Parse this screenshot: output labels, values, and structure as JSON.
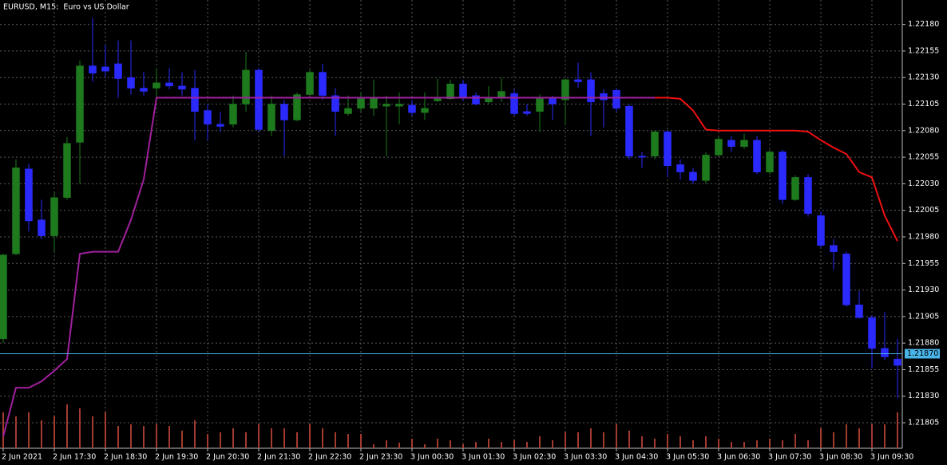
{
  "chart_data": {
    "type": "candlestick",
    "title": "EURUSD, M15:  Euro vs US Dollar",
    "categories": [
      "2 Jun 2021",
      null,
      null,
      null,
      "2 Jun 17:30",
      null,
      null,
      null,
      "2 Jun 18:30",
      null,
      null,
      null,
      "2 Jun 19:30",
      null,
      null,
      null,
      "2 Jun 20:30",
      null,
      null,
      null,
      "2 Jun 21:30",
      null,
      null,
      null,
      "2 Jun 22:30",
      null,
      null,
      null,
      "2 Jun 23:30",
      null,
      null,
      null,
      "3 Jun 00:30",
      null,
      null,
      null,
      "3 Jun 01:30",
      null,
      null,
      null,
      "3 Jun 02:30",
      null,
      null,
      null,
      "3 Jun 03:30",
      null,
      null,
      null,
      "3 Jun 04:30",
      null,
      null,
      null,
      "3 Jun 05:30",
      null,
      null,
      null,
      "3 Jun 06:30",
      null,
      null,
      null,
      "3 Jun 07:30",
      null,
      null,
      null,
      "3 Jun 08:30",
      null,
      null,
      null,
      "3 Jun 09:30",
      null,
      null
    ],
    "candles": {
      "open": [
        1.21884,
        1.21964,
        1.22044,
        1.21996,
        1.21981,
        1.22017,
        1.22069,
        1.22141,
        1.2214,
        1.22143,
        1.2213,
        1.2212,
        1.2212,
        1.22125,
        1.22122,
        1.2212,
        1.22099,
        1.22086,
        1.22086,
        1.22105,
        1.22137,
        1.2208,
        1.22105,
        1.2209,
        1.22114,
        1.22135,
        1.22113,
        1.22096,
        1.22101,
        1.22101,
        1.22103,
        1.22103,
        1.22104,
        1.22097,
        1.22108,
        1.2211,
        1.22124,
        1.22113,
        1.22107,
        1.22111,
        1.22115,
        1.22098,
        1.22098,
        1.2211,
        1.22109,
        1.22128,
        1.22128,
        1.22115,
        1.22118,
        1.22103,
        1.22056,
        1.22056,
        1.22079,
        1.22048,
        1.22041,
        1.22033,
        1.22057,
        1.22071,
        1.22065,
        1.22071,
        1.22041,
        1.2206,
        1.22015,
        1.22036,
        1.22,
        1.21972,
        1.21964,
        1.21916,
        1.21904,
        1.21875,
        1.21865
      ],
      "high": [
        1.21964,
        1.22053,
        1.22049,
        1.22015,
        1.22023,
        1.22074,
        1.22146,
        1.22186,
        1.22161,
        1.22165,
        1.22165,
        1.22135,
        1.22139,
        1.22139,
        1.22135,
        1.22137,
        1.22105,
        1.22098,
        1.22113,
        1.22154,
        1.22139,
        1.22113,
        1.22109,
        1.22116,
        1.22137,
        1.22143,
        1.2212,
        1.22113,
        1.22116,
        1.22128,
        1.22113,
        1.22116,
        1.22109,
        1.22116,
        1.22129,
        1.22128,
        1.22128,
        1.22116,
        1.22122,
        1.2213,
        1.22119,
        1.22105,
        1.22114,
        1.22113,
        1.22129,
        1.22144,
        1.22135,
        1.22119,
        1.2212,
        1.22105,
        1.2206,
        1.2208,
        1.2208,
        1.22053,
        1.22045,
        1.2206,
        1.22075,
        1.22075,
        1.22077,
        1.22075,
        1.22062,
        1.22062,
        1.22038,
        1.22039,
        1.22004,
        1.21978,
        1.21966,
        1.21929,
        1.21906,
        1.21909,
        1.21884
      ],
      "low": [
        1.2188,
        1.21963,
        1.21985,
        1.21978,
        1.21966,
        1.22015,
        1.2203,
        1.22126,
        1.22131,
        1.22111,
        1.22114,
        1.22113,
        1.22111,
        1.22119,
        1.22113,
        1.22071,
        1.22071,
        1.22079,
        1.22083,
        1.22098,
        1.22079,
        1.22075,
        1.22056,
        1.22089,
        1.22113,
        1.22109,
        1.22075,
        1.22094,
        1.22098,
        1.22094,
        1.22056,
        1.22086,
        1.22094,
        1.2209,
        1.22107,
        1.22109,
        1.22108,
        1.22104,
        1.22105,
        1.22107,
        1.22094,
        1.22094,
        1.22079,
        1.2209,
        1.22086,
        1.2212,
        1.22075,
        1.22083,
        1.22098,
        1.22053,
        1.22045,
        1.22053,
        1.22036,
        1.22034,
        1.2203,
        1.2203,
        1.22056,
        1.2206,
        1.22063,
        1.22039,
        1.22039,
        1.22011,
        1.22014,
        1.21999,
        1.2197,
        1.21949,
        1.21914,
        1.21903,
        1.21856,
        1.21864,
        1.21828
      ],
      "close": [
        1.21963,
        1.22045,
        1.21995,
        1.21981,
        1.22017,
        1.22068,
        1.22141,
        1.22134,
        1.22136,
        1.22129,
        1.2212,
        1.22117,
        1.22125,
        1.22122,
        1.22119,
        1.22098,
        1.22086,
        1.22084,
        1.22105,
        1.22137,
        1.22081,
        1.22105,
        1.2209,
        1.22114,
        1.22135,
        1.22113,
        1.22098,
        1.22101,
        1.2211,
        1.22111,
        1.22105,
        1.22105,
        1.22097,
        1.22101,
        1.2211,
        1.22124,
        1.22111,
        1.22105,
        1.22111,
        1.22117,
        1.22096,
        1.22096,
        1.2211,
        1.22105,
        1.22128,
        1.22126,
        1.22107,
        1.22109,
        1.22101,
        1.22056,
        1.22055,
        1.22079,
        1.22047,
        1.22041,
        1.22033,
        1.22057,
        1.22072,
        1.22065,
        1.22071,
        1.22041,
        1.2206,
        1.22015,
        1.22036,
        1.22002,
        1.21972,
        1.21966,
        1.21916,
        1.21904,
        1.21875,
        1.21867,
        1.21859
      ]
    },
    "bull_color": "#1d7a1d",
    "bear_color": "#2a2aff",
    "indicator_lines": [
      {
        "color": "#a0209c",
        "values": [
          1.21792,
          1.21838,
          1.21838,
          1.21844,
          1.21854,
          1.21865,
          1.21964,
          1.21966,
          1.21966,
          1.21966,
          1.21996,
          1.22034,
          1.22111,
          1.22111,
          1.22111,
          1.22111,
          1.22111,
          1.22111,
          1.22111,
          1.22111,
          1.22111,
          1.22111,
          1.22111,
          1.22111,
          1.22111,
          1.22111,
          1.22111,
          1.22111,
          1.22111,
          1.22111,
          1.22111,
          1.22111,
          1.22111,
          1.22111,
          1.22111,
          1.22111,
          1.22111,
          1.22111,
          1.22111,
          1.22111,
          1.22111,
          1.22111,
          1.22111,
          1.22111,
          1.22111,
          1.22111,
          1.22111,
          1.22111,
          1.22111,
          1.22111,
          1.22111,
          1.22111,
          null,
          null,
          null,
          null,
          null,
          null,
          null,
          null,
          null,
          null,
          null,
          null,
          null,
          null,
          null,
          null,
          null,
          null,
          null
        ]
      },
      {
        "color": "#ee1111",
        "values": [
          null,
          null,
          null,
          null,
          null,
          null,
          null,
          null,
          null,
          null,
          null,
          null,
          null,
          null,
          null,
          null,
          null,
          null,
          null,
          null,
          null,
          null,
          null,
          null,
          null,
          null,
          null,
          null,
          null,
          null,
          null,
          null,
          null,
          null,
          null,
          null,
          null,
          null,
          null,
          null,
          null,
          null,
          null,
          null,
          null,
          null,
          null,
          null,
          null,
          null,
          null,
          1.22111,
          1.22111,
          1.2211,
          1.22099,
          1.22081,
          1.2208,
          1.2208,
          1.2208,
          1.2208,
          1.2208,
          1.2208,
          1.2208,
          1.22079,
          1.22071,
          1.22064,
          1.22058,
          1.22041,
          1.22036,
          1.22,
          1.21976
        ]
      }
    ],
    "volumes": [
      450,
      400,
      450,
      350,
      400,
      550,
      500,
      400,
      450,
      280,
      300,
      280,
      300,
      280,
      220,
      350,
      180,
      200,
      250,
      200,
      300,
      250,
      250,
      200,
      300,
      250,
      200,
      180,
      180,
      50,
      100,
      70,
      120,
      50,
      120,
      100,
      50,
      80,
      120,
      80,
      100,
      80,
      150,
      100,
      200,
      200,
      250,
      200,
      300,
      220,
      150,
      120,
      180,
      150,
      100,
      150,
      120,
      80,
      80,
      100,
      120,
      100,
      180,
      100,
      250,
      200,
      300,
      250,
      300,
      300,
      450
    ],
    "volume_color": "#a33b30",
    "ylim": [
      1.21781,
      1.22203
    ],
    "yticks": [
      {
        "value": 1.2218,
        "label": "1.22180"
      },
      1.22155,
      {
        "value": 1.2213,
        "label": "1.22130"
      },
      1.22105,
      {
        "value": 1.2208,
        "label": "1.22080"
      },
      1.22055,
      {
        "value": 1.2203,
        "label": "1.22030"
      },
      1.22005,
      {
        "value": 1.2198,
        "label": "1.21980"
      },
      1.21955,
      {
        "value": 1.2193,
        "label": "1.21930"
      },
      1.21905,
      {
        "value": 1.2188,
        "label": "1.21880"
      },
      1.21855,
      {
        "value": 1.2183,
        "label": "1.21830"
      },
      1.21805
    ],
    "grid": true,
    "bid_line": {
      "value": 1.2187,
      "label": "1.21870",
      "color": "#48b4e8"
    }
  }
}
